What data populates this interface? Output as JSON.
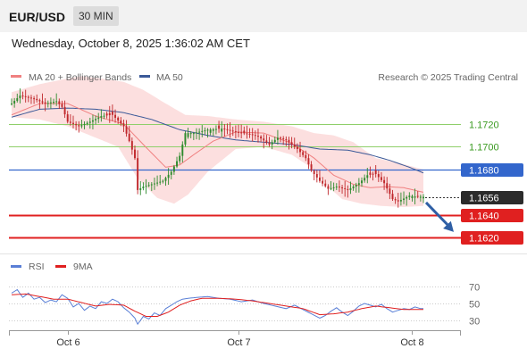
{
  "header": {
    "pair": "EUR/USD",
    "timeframe": "30 MIN",
    "datetime": "Wednesday, October 8, 2025 1:36:02 AM CET"
  },
  "colors": {
    "bull": "#2e8b2e",
    "bear": "#c0282c",
    "bands": "#fbd9d9",
    "ma20": "#f08080",
    "ma50": "#3b5998",
    "rsi": "#5a7fd6",
    "rsi_ma": "#e02020",
    "support": "#e02020",
    "resistance": "#3366cc",
    "target_arrow": "#2f5fa5"
  },
  "chart_data": [
    {
      "type": "candlestick",
      "legend": [
        {
          "name": "MA 20 + Bollinger Bands",
          "color": "#f08080"
        },
        {
          "name": "MA 50",
          "color": "#3b5998"
        }
      ],
      "credit": "Research © 2025 Trading Central",
      "y_range": [
        1.1607,
        1.1778
      ],
      "x_ticks": [
        {
          "label": "Oct 6",
          "index": 20
        },
        {
          "label": "Oct 7",
          "index": 81
        },
        {
          "label": "Oct 8",
          "index": 143
        }
      ],
      "levels": [
        {
          "value": 1.172,
          "label": "1.1720",
          "kind": "target-green"
        },
        {
          "value": 1.17,
          "label": "1.1700",
          "kind": "target-green"
        },
        {
          "value": 1.168,
          "label": "1.1680",
          "kind": "resistance"
        },
        {
          "value": 1.1656,
          "label": "1.1656",
          "kind": "last-price"
        },
        {
          "value": 1.164,
          "label": "1.1640",
          "kind": "support"
        },
        {
          "value": 1.162,
          "label": "1.1620",
          "kind": "support"
        }
      ],
      "forecast_arrow": {
        "from": 1.1651,
        "to": 1.1622
      },
      "series": [
        {
          "name": "price",
          "key_points": [
            [
              0,
              1.1738
            ],
            [
              3,
              1.1745
            ],
            [
              8,
              1.1742
            ],
            [
              12,
              1.1738
            ],
            [
              16,
              1.174
            ],
            [
              18,
              1.1735
            ],
            [
              20,
              1.1722
            ],
            [
              24,
              1.1718
            ],
            [
              28,
              1.1722
            ],
            [
              32,
              1.1727
            ],
            [
              36,
              1.1728
            ],
            [
              40,
              1.1718
            ],
            [
              42,
              1.1705
            ],
            [
              44,
              1.169
            ],
            [
              45,
              1.1662
            ],
            [
              47,
              1.1665
            ],
            [
              50,
              1.1667
            ],
            [
              54,
              1.167
            ],
            [
              57,
              1.1678
            ],
            [
              60,
              1.1692
            ],
            [
              62,
              1.1712
            ],
            [
              65,
              1.1712
            ],
            [
              70,
              1.1715
            ],
            [
              75,
              1.1716
            ],
            [
              80,
              1.1713
            ],
            [
              85,
              1.1711
            ],
            [
              88,
              1.1709
            ],
            [
              92,
              1.1702
            ],
            [
              95,
              1.1708
            ],
            [
              98,
              1.1706
            ],
            [
              102,
              1.1698
            ],
            [
              105,
              1.169
            ],
            [
              107,
              1.1679
            ],
            [
              110,
              1.167
            ],
            [
              113,
              1.1663
            ],
            [
              116,
              1.1665
            ],
            [
              120,
              1.1662
            ],
            [
              124,
              1.1668
            ],
            [
              127,
              1.1675
            ],
            [
              130,
              1.1676
            ],
            [
              133,
              1.1668
            ],
            [
              136,
              1.1654
            ],
            [
              138,
              1.1652
            ],
            [
              142,
              1.1657
            ],
            [
              145,
              1.1656
            ],
            [
              147,
              1.1656
            ]
          ]
        },
        {
          "name": "MA 20",
          "key_points": [
            [
              0,
              1.1728
            ],
            [
              10,
              1.1738
            ],
            [
              20,
              1.1738
            ],
            [
              30,
              1.1727
            ],
            [
              40,
              1.172
            ],
            [
              47,
              1.1702
            ],
            [
              55,
              1.1682
            ],
            [
              60,
              1.1684
            ],
            [
              65,
              1.1693
            ],
            [
              72,
              1.1705
            ],
            [
              80,
              1.1713
            ],
            [
              90,
              1.1712
            ],
            [
              100,
              1.1703
            ],
            [
              108,
              1.169
            ],
            [
              115,
              1.1675
            ],
            [
              122,
              1.1667
            ],
            [
              128,
              1.1664
            ],
            [
              134,
              1.1665
            ],
            [
              140,
              1.1664
            ],
            [
              147,
              1.166
            ]
          ]
        },
        {
          "name": "MA 50",
          "key_points": [
            [
              0,
              1.1726
            ],
            [
              10,
              1.1733
            ],
            [
              20,
              1.1734
            ],
            [
              30,
              1.1733
            ],
            [
              40,
              1.173
            ],
            [
              50,
              1.1724
            ],
            [
              60,
              1.1715
            ],
            [
              70,
              1.171
            ],
            [
              80,
              1.1706
            ],
            [
              90,
              1.1704
            ],
            [
              100,
              1.1702
            ],
            [
              110,
              1.1698
            ],
            [
              120,
              1.1697
            ],
            [
              128,
              1.1693
            ],
            [
              135,
              1.1688
            ],
            [
              142,
              1.1682
            ],
            [
              147,
              1.1677
            ]
          ]
        },
        {
          "name": "Bollinger upper",
          "key_points": [
            [
              0,
              1.1748
            ],
            [
              10,
              1.1755
            ],
            [
              20,
              1.176
            ],
            [
              25,
              1.1762
            ],
            [
              32,
              1.176
            ],
            [
              40,
              1.1757
            ],
            [
              47,
              1.175
            ],
            [
              55,
              1.1738
            ],
            [
              62,
              1.1728
            ],
            [
              70,
              1.1727
            ],
            [
              80,
              1.1724
            ],
            [
              90,
              1.1722
            ],
            [
              100,
              1.1718
            ],
            [
              108,
              1.1712
            ],
            [
              115,
              1.171
            ],
            [
              122,
              1.1704
            ],
            [
              130,
              1.169
            ],
            [
              138,
              1.1686
            ],
            [
              147,
              1.168
            ]
          ]
        },
        {
          "name": "Bollinger lower",
          "key_points": [
            [
              0,
              1.1726
            ],
            [
              10,
              1.1724
            ],
            [
              20,
              1.1718
            ],
            [
              30,
              1.1708
            ],
            [
              38,
              1.17
            ],
            [
              45,
              1.1672
            ],
            [
              52,
              1.1655
            ],
            [
              58,
              1.165
            ],
            [
              63,
              1.1658
            ],
            [
              70,
              1.1678
            ],
            [
              80,
              1.1698
            ],
            [
              90,
              1.17
            ],
            [
              100,
              1.1693
            ],
            [
              108,
              1.168
            ],
            [
              113,
              1.1665
            ],
            [
              118,
              1.1654
            ],
            [
              125,
              1.165
            ],
            [
              132,
              1.1648
            ],
            [
              140,
              1.1647
            ],
            [
              147,
              1.1648
            ]
          ]
        }
      ]
    },
    {
      "type": "line",
      "legend": [
        {
          "name": "RSI",
          "color": "#5a7fd6"
        },
        {
          "name": "9MA",
          "color": "#e02020"
        }
      ],
      "y_ticks": [
        30,
        50,
        70
      ],
      "y_range": [
        20,
        80
      ],
      "series": [
        {
          "name": "RSI",
          "key_points": [
            [
              0,
              62
            ],
            [
              2,
              66
            ],
            [
              4,
              57
            ],
            [
              6,
              62
            ],
            [
              8,
              55
            ],
            [
              10,
              57
            ],
            [
              12,
              51
            ],
            [
              14,
              54
            ],
            [
              16,
              52
            ],
            [
              18,
              60
            ],
            [
              20,
              56
            ],
            [
              22,
              46
            ],
            [
              24,
              50
            ],
            [
              26,
              42
            ],
            [
              28,
              47
            ],
            [
              30,
              44
            ],
            [
              32,
              52
            ],
            [
              34,
              50
            ],
            [
              36,
              55
            ],
            [
              38,
              52
            ],
            [
              40,
              45
            ],
            [
              42,
              40
            ],
            [
              44,
              33
            ],
            [
              45,
              26
            ],
            [
              47,
              35
            ],
            [
              49,
              32
            ],
            [
              51,
              39
            ],
            [
              53,
              36
            ],
            [
              55,
              44
            ],
            [
              57,
              48
            ],
            [
              59,
              52
            ],
            [
              61,
              55
            ],
            [
              63,
              56
            ],
            [
              66,
              57
            ],
            [
              70,
              58
            ],
            [
              74,
              56
            ],
            [
              78,
              55
            ],
            [
              82,
              52
            ],
            [
              86,
              54
            ],
            [
              90,
              50
            ],
            [
              94,
              47
            ],
            [
              98,
              44
            ],
            [
              101,
              48
            ],
            [
              104,
              43
            ],
            [
              107,
              38
            ],
            [
              110,
              33
            ],
            [
              112,
              36
            ],
            [
              114,
              41
            ],
            [
              116,
              45
            ],
            [
              118,
              40
            ],
            [
              120,
              36
            ],
            [
              122,
              41
            ],
            [
              124,
              47
            ],
            [
              126,
              50
            ],
            [
              128,
              48
            ],
            [
              130,
              46
            ],
            [
              132,
              49
            ],
            [
              134,
              44
            ],
            [
              136,
              40
            ],
            [
              138,
              42
            ],
            [
              140,
              44
            ],
            [
              142,
              43
            ],
            [
              144,
              46
            ],
            [
              146,
              44
            ]
          ]
        },
        {
          "name": "9MA",
          "key_points": [
            [
              0,
              60
            ],
            [
              5,
              61
            ],
            [
              10,
              58
            ],
            [
              15,
              55
            ],
            [
              20,
              55
            ],
            [
              25,
              51
            ],
            [
              30,
              47
            ],
            [
              35,
              49
            ],
            [
              40,
              48
            ],
            [
              44,
              41
            ],
            [
              48,
              35
            ],
            [
              52,
              35
            ],
            [
              56,
              40
            ],
            [
              60,
              48
            ],
            [
              64,
              53
            ],
            [
              68,
              56
            ],
            [
              74,
              56
            ],
            [
              80,
              55
            ],
            [
              86,
              53
            ],
            [
              92,
              50
            ],
            [
              98,
              47
            ],
            [
              104,
              44
            ],
            [
              110,
              37
            ],
            [
              115,
              38
            ],
            [
              120,
              40
            ],
            [
              125,
              44
            ],
            [
              130,
              47
            ],
            [
              135,
              45
            ],
            [
              140,
              43
            ],
            [
              146,
              43
            ]
          ]
        }
      ]
    }
  ]
}
